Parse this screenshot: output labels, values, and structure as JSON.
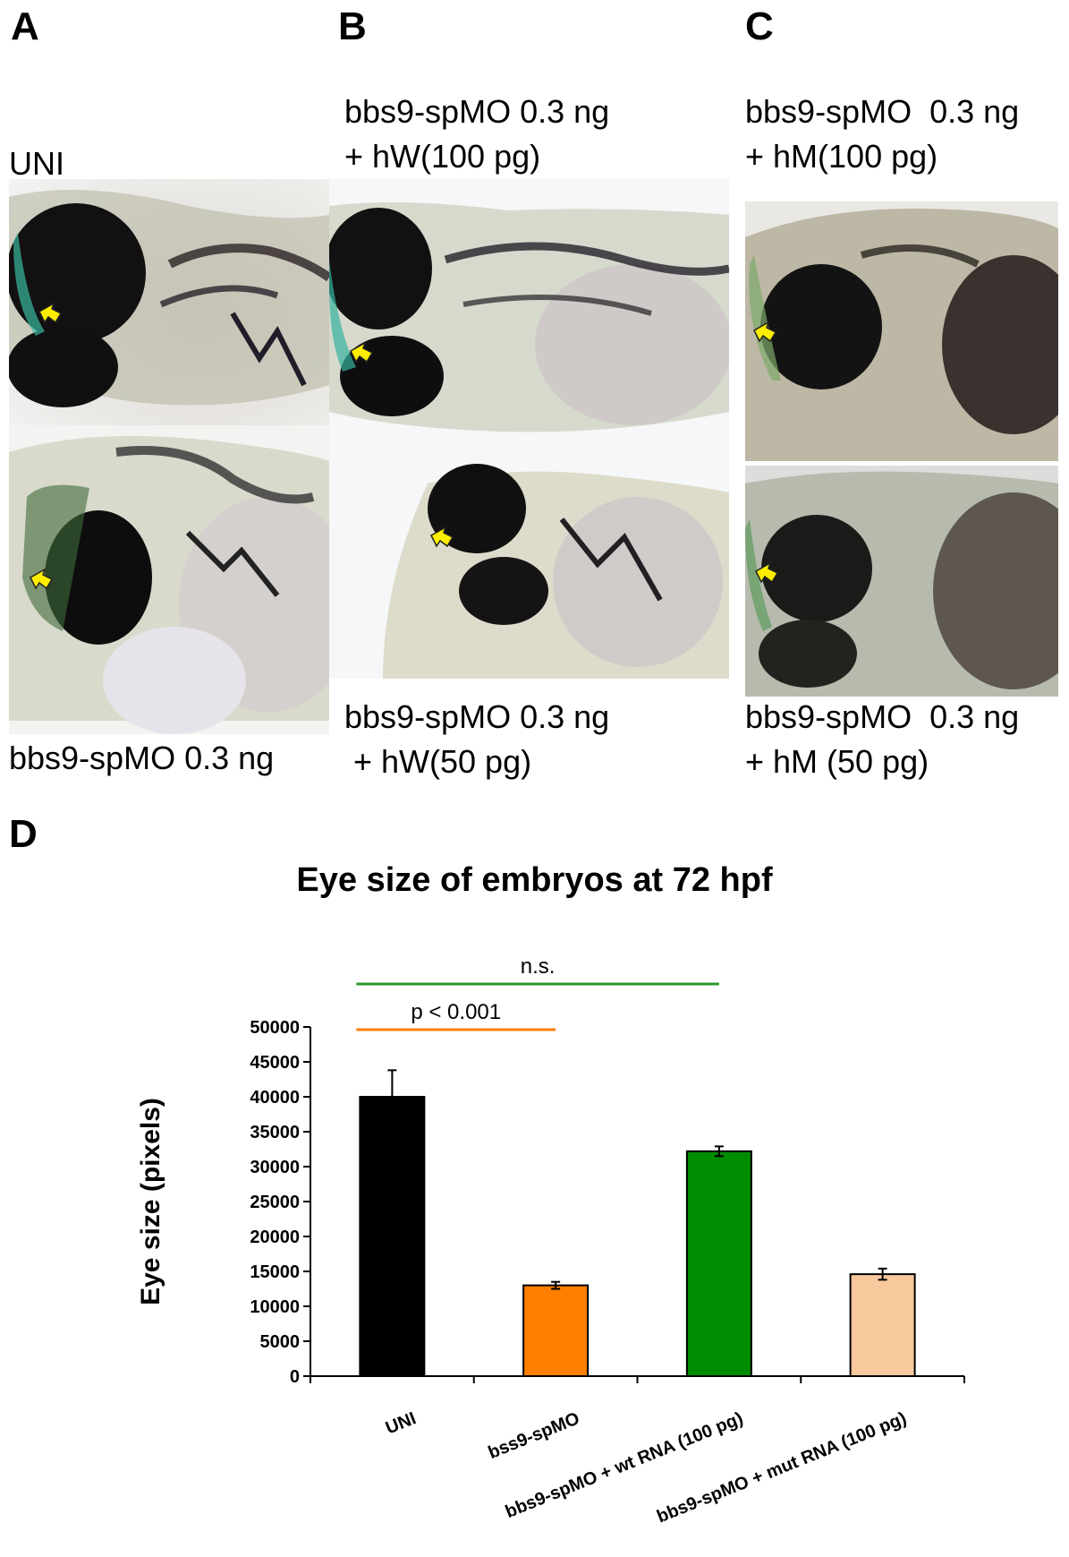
{
  "panels": {
    "A": {
      "letter": "A",
      "caption_top": "UNI",
      "caption_bottom": "bbs9-spMO  0.3 ng"
    },
    "B": {
      "letter": "B",
      "caption_top_line1": "bbs9-spMO 0.3 ng",
      "caption_top_line2": "+ hW(100 pg)",
      "caption_bottom_line1": "bbs9-spMO 0.3 ng",
      "caption_bottom_line2": " + hW(50 pg)"
    },
    "C": {
      "letter": "C",
      "caption_top_line1": "bbs9-spMO  0.3 ng",
      "caption_top_line2": "+ hM(100 pg)",
      "caption_bottom_line1": "bbs9-spMO  0.3 ng",
      "caption_bottom_line2": "+ hM (50 pg)"
    },
    "D": {
      "letter": "D"
    }
  },
  "colors": {
    "arrow": "#ffee00",
    "bar_uni": "#000000",
    "bar_morphant": "#ff7f00",
    "bar_wt": "#008c00",
    "bar_mut": "#f8c99c",
    "line_sig": "#ff7f00",
    "line_ns": "#2a9a2a"
  },
  "chart_data": {
    "type": "bar",
    "title": "Eye size of embryos at 72 hpf",
    "ylabel": "Eye size (pixels)",
    "xlabel": "",
    "ylim": [
      0,
      50000
    ],
    "yticks": [
      "0",
      "5000",
      "10000",
      "15000",
      "20000",
      "25000",
      "30000",
      "35000",
      "40000",
      "45000",
      "50000"
    ],
    "categories": [
      "UNI",
      "bss9-spMO",
      "bbs9-spMO + wt RNA (100 pg)",
      "bbs9-spMO + mut RNA (100 pg)"
    ],
    "values": [
      40000,
      13000,
      32200,
      14600
    ],
    "errors": [
      3800,
      500,
      700,
      800
    ],
    "annotations": [
      {
        "text": "p < 0.001",
        "from": 0,
        "to": 1
      },
      {
        "text": "n.s.",
        "from": 0,
        "to": 2
      }
    ]
  }
}
